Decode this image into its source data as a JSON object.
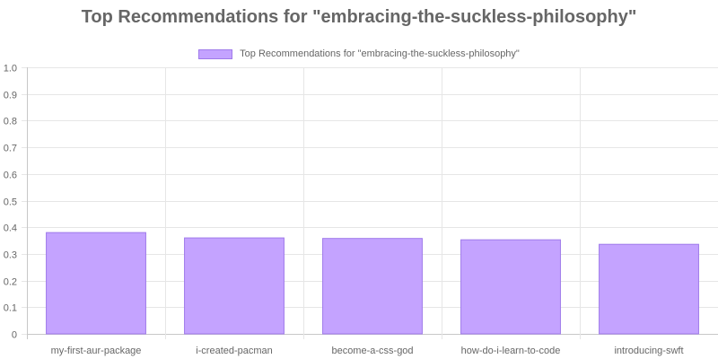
{
  "chart_data": {
    "type": "bar",
    "title": "Top Recommendations for \"embracing-the-suckless-philosophy\"",
    "categories": [
      "my-first-aur-package",
      "i-created-pacman",
      "become-a-css-god",
      "how-do-i-learn-to-code",
      "introducing-swft"
    ],
    "series": [
      {
        "name": "Top Recommendations for \"embracing-the-suckless-philosophy\"",
        "values": [
          0.38,
          0.36,
          0.358,
          0.353,
          0.336
        ],
        "color": "#c4a3ff",
        "border_color": "#9f7aea"
      }
    ],
    "y_ticks": [
      "0",
      "0.1",
      "0.2",
      "0.3",
      "0.4",
      "0.5",
      "0.6",
      "0.7",
      "0.8",
      "0.9",
      "1.0"
    ],
    "ylim": [
      0,
      1
    ],
    "grid": true,
    "legend_position": "top"
  }
}
